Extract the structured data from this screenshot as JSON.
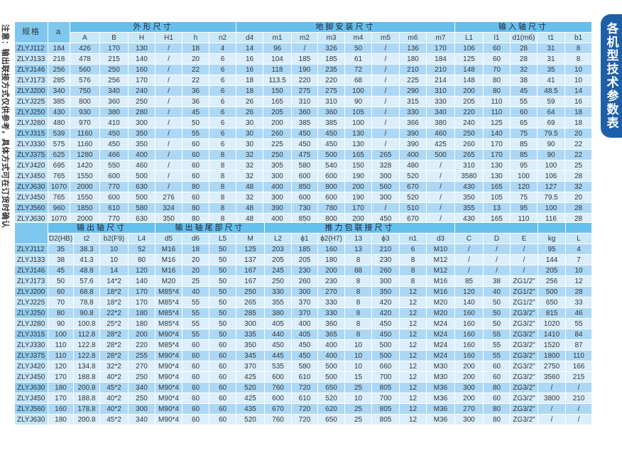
{
  "note": "注意：输出联接方式仅供参考，具体方式可在订货时确认",
  "title_badge": "各机型技术参数表",
  "colors": {
    "group_header": "#66bfec",
    "sub_header": "#c8e7f9",
    "row_dark": "#acd8f5",
    "row_light": "#dbeefb",
    "badge": "#1d5fa9"
  },
  "top_table": {
    "header_groups": [
      {
        "label": "规格",
        "colspan": 1,
        "rowspan": 2
      },
      {
        "label": "a",
        "colspan": 1,
        "rowspan": 2
      },
      {
        "label": "外形尺寸",
        "colspan": 6,
        "rowspan": 1
      },
      {
        "label": "地脚安装尺寸",
        "colspan": 8,
        "rowspan": 1
      },
      {
        "label": "输入轴尺寸",
        "colspan": 5,
        "rowspan": 1
      }
    ],
    "columns": [
      "A",
      "B",
      "H",
      "H1",
      "h",
      "n2",
      "d4",
      "m1",
      "m2",
      "m3",
      "m4",
      "m5",
      "m6",
      "m7",
      "L1",
      "l1",
      "d1(m6)",
      "t1",
      "b1"
    ],
    "rows": [
      [
        "ZLYJ112",
        "184",
        "426",
        "170",
        "130",
        "/",
        "18",
        "4",
        "14",
        "96",
        "/",
        "326",
        "50",
        "/",
        "136",
        "170",
        "106",
        "60",
        "28",
        "31",
        "8"
      ],
      [
        "ZLYJ133",
        "218",
        "478",
        "215",
        "140",
        "/",
        "20",
        "6",
        "16",
        "104",
        "185",
        "185",
        "61",
        "/",
        "180",
        "184",
        "125",
        "60",
        "28",
        "31",
        "8"
      ],
      [
        "ZLYJ146",
        "256",
        "560",
        "250",
        "160",
        "/",
        "22",
        "6",
        "16",
        "118",
        "190",
        "235",
        "72",
        "/",
        "210",
        "210",
        "148",
        "70",
        "32",
        "35",
        "10"
      ],
      [
        "ZLYJ173",
        "285",
        "576",
        "256",
        "170",
        "/",
        "22",
        "6",
        "18",
        "113.5",
        "220",
        "220",
        "68",
        "/",
        "225",
        "214",
        "148",
        "80",
        "38",
        "41",
        "10"
      ],
      [
        "ZLYJ200",
        "340",
        "750",
        "340",
        "240",
        "/",
        "36",
        "6",
        "18",
        "150",
        "275",
        "275",
        "100",
        "/",
        "290",
        "310",
        "200",
        "80",
        "45",
        "48.5",
        "14"
      ],
      [
        "ZLYJ225",
        "385",
        "800",
        "360",
        "250",
        "/",
        "36",
        "6",
        "26",
        "165",
        "310",
        "310",
        "90",
        "/",
        "315",
        "330",
        "205",
        "110",
        "55",
        "59",
        "16"
      ],
      [
        "ZLYJ250",
        "430",
        "930",
        "380",
        "280",
        "/",
        "45",
        "6",
        "26",
        "205",
        "360",
        "360",
        "105",
        "/",
        "330",
        "340",
        "220",
        "110",
        "60",
        "64",
        "18"
      ],
      [
        "ZLYJ280",
        "480",
        "970",
        "410",
        "300",
        "/",
        "50",
        "6",
        "30",
        "200",
        "385",
        "385",
        "100",
        "/",
        "366",
        "380",
        "240",
        "125",
        "65",
        "69",
        "18"
      ],
      [
        "ZLYJ315",
        "539",
        "1160",
        "450",
        "350",
        "/",
        "55",
        "6",
        "30",
        "260",
        "450",
        "450",
        "130",
        "/",
        "390",
        "460",
        "250",
        "140",
        "75",
        "79.5",
        "20"
      ],
      [
        "ZLYJ330",
        "575",
        "1160",
        "450",
        "350",
        "/",
        "60",
        "6",
        "30",
        "225",
        "450",
        "450",
        "130",
        "/",
        "390",
        "425",
        "260",
        "170",
        "85",
        "90",
        "22"
      ],
      [
        "ZLYJ375",
        "625",
        "1280",
        "466",
        "400",
        "/",
        "60",
        "8",
        "32",
        "250",
        "475",
        "500",
        "165",
        "265",
        "400",
        "500",
        "265",
        "170",
        "85",
        "90",
        "22"
      ],
      [
        "ZLYJ420",
        "695",
        "1420",
        "550",
        "460",
        "/",
        "60",
        "8",
        "32",
        "305",
        "580",
        "540",
        "150",
        "328",
        "480",
        "/",
        "310",
        "130",
        "95",
        "100",
        "25"
      ],
      [
        "ZLYJ450",
        "765",
        "1550",
        "600",
        "500",
        "/",
        "60",
        "8",
        "32",
        "300",
        "600",
        "600",
        "190",
        "300",
        "520",
        "/",
        "3580",
        "130",
        "100",
        "106",
        "28"
      ],
      [
        "ZLYJ630",
        "1070",
        "2000",
        "770",
        "630",
        "/",
        "80",
        "8",
        "48",
        "400",
        "850",
        "800",
        "200",
        "560",
        "670",
        "/",
        "430",
        "165",
        "120",
        "127",
        "32"
      ],
      [
        "ZLYJ450",
        "765",
        "1550",
        "600",
        "500",
        "276",
        "60",
        "8",
        "32",
        "300",
        "600",
        "600",
        "190",
        "300",
        "520",
        "/",
        "350",
        "105",
        "75",
        "79.5",
        "20"
      ],
      [
        "ZLYJ560",
        "960",
        "1850",
        "610",
        "580",
        "324",
        "80",
        "8",
        "48",
        "390",
        "730",
        "780",
        "170",
        "/",
        "510",
        "/",
        "355",
        "13",
        "95",
        "100",
        "28"
      ],
      [
        "ZLYJ630",
        "1070",
        "2000",
        "770",
        "630",
        "350",
        "80",
        "8",
        "48",
        "400",
        "850",
        "800",
        "200",
        "450",
        "670",
        "/",
        "430",
        "165",
        "110",
        "116",
        "28"
      ]
    ]
  },
  "bottom_table": {
    "header_groups": [
      {
        "label": "",
        "colspan": 1,
        "rowspan": 2
      },
      {
        "label": "输出轴尺寸",
        "colspan": 4,
        "rowspan": 1
      },
      {
        "label": "输出轴尾部尺寸",
        "colspan": 4,
        "rowspan": 1
      },
      {
        "label": "推力包联接尺寸",
        "colspan": 7,
        "rowspan": 1
      },
      {
        "label": "",
        "colspan": 3,
        "rowspan": 1
      },
      {
        "label": "",
        "colspan": 1,
        "rowspan": 1
      },
      {
        "label": "",
        "colspan": 1,
        "rowspan": 1
      }
    ],
    "columns": [
      "D2(HB)",
      "t2",
      "b2(F9)",
      "L4",
      "d5",
      "d6",
      "L5",
      "M",
      "L2",
      "ϕ1",
      "ϕ2(H7)",
      "13",
      "ϕ3",
      "n1",
      "d3",
      "C",
      "D",
      "E",
      "kg",
      "L"
    ],
    "rows": [
      [
        "ZLYJ112",
        "35",
        "38.3",
        "10",
        "52",
        "M16",
        "18",
        "50",
        "125",
        "203",
        "185",
        "160",
        "13",
        "210",
        "6",
        "M10",
        "/",
        "/",
        "/",
        "95",
        "4"
      ],
      [
        "ZLYJ133",
        "38",
        "41.3",
        "10",
        "80",
        "M16",
        "20",
        "50",
        "137",
        "205",
        "205",
        "180",
        "8",
        "230",
        "8",
        "M12",
        "/",
        "/",
        "/",
        "144",
        "7"
      ],
      [
        "ZLYJ146",
        "45",
        "48.8",
        "14",
        "120",
        "M16",
        "20",
        "50",
        "167",
        "245",
        "230",
        "200",
        "88",
        "260",
        "8",
        "M12",
        "/",
        "/",
        "/",
        "205",
        "10"
      ],
      [
        "ZLYJ173",
        "50",
        "57.6",
        "14*2",
        "140",
        "M20",
        "25",
        "50",
        "167",
        "250",
        "260",
        "230",
        "8",
        "300",
        "8",
        "M16",
        "85",
        "38",
        "ZG1/2\"",
        "256",
        "12"
      ],
      [
        "ZLYJ200",
        "60",
        "68.8",
        "18*2",
        "170",
        "M85*4",
        "40",
        "50",
        "250",
        "330",
        "300",
        "270",
        "8",
        "350",
        "12",
        "M16",
        "120",
        "40",
        "ZG1/2\"",
        "500",
        "28"
      ],
      [
        "ZLYJ225",
        "70",
        "78.8",
        "18*2",
        "170",
        "M85*4",
        "55",
        "50",
        "265",
        "355",
        "370",
        "330",
        "8",
        "420",
        "12",
        "M20",
        "140",
        "50",
        "ZG1/2\"",
        "650",
        "33"
      ],
      [
        "ZLYJ250",
        "80",
        "90.8",
        "22*2",
        "180",
        "M85*4",
        "55",
        "50",
        "285",
        "380",
        "370",
        "330",
        "8",
        "420",
        "12",
        "M20",
        "160",
        "50",
        "ZG3/2\"",
        "815",
        "46"
      ],
      [
        "ZLYJ280",
        "90",
        "100.8",
        "25*2",
        "180",
        "M85*4",
        "55",
        "50",
        "300",
        "405",
        "400",
        "360",
        "8",
        "450",
        "12",
        "M24",
        "160",
        "50",
        "ZG3/2\"",
        "1020",
        "55"
      ],
      [
        "ZLYJ315",
        "100",
        "112.8",
        "28*2",
        "200",
        "M90*4",
        "55",
        "50",
        "335",
        "440",
        "405",
        "365",
        "8",
        "450",
        "12",
        "M24",
        "160",
        "55",
        "ZG3/2\"",
        "1410",
        "84"
      ],
      [
        "ZLYJ330",
        "110",
        "122.8",
        "28*2",
        "220",
        "M85*4",
        "60",
        "60",
        "350",
        "450",
        "450",
        "400",
        "10",
        "500",
        "12",
        "M24",
        "160",
        "55",
        "ZG3/2\"",
        "1520",
        "87"
      ],
      [
        "ZLYJ375",
        "110",
        "122.8",
        "28*2",
        "255",
        "M90*4",
        "60",
        "60",
        "345",
        "445",
        "450",
        "400",
        "10",
        "500",
        "12",
        "M24",
        "160",
        "55",
        "ZG3/2\"",
        "1800",
        "110"
      ],
      [
        "ZLYJ420",
        "120",
        "134.8",
        "32*2",
        "270",
        "M90*4",
        "60",
        "60",
        "370",
        "535",
        "580",
        "500",
        "10",
        "660",
        "12",
        "M30",
        "200",
        "60",
        "ZG3/2\"",
        "2750",
        "166"
      ],
      [
        "ZLYJ450",
        "170",
        "188.8",
        "40*2",
        "250",
        "M90*4",
        "60",
        "60",
        "425",
        "600",
        "610",
        "500",
        "15",
        "700",
        "12",
        "M30",
        "200",
        "60",
        "ZG3/2\"",
        "3560",
        "215"
      ],
      [
        "ZLYJ630",
        "180",
        "200.8",
        "45*2",
        "340",
        "M90*4",
        "60",
        "60",
        "520",
        "760",
        "720",
        "650",
        "25",
        "805",
        "12",
        "M36",
        "300",
        "80",
        "ZG3/2\"",
        "/",
        "/"
      ],
      [
        "ZLYJ450",
        "170",
        "188.8",
        "40*2",
        "250",
        "M90*4",
        "60",
        "60",
        "425",
        "600",
        "610",
        "520",
        "10",
        "700",
        "12",
        "M36",
        "200",
        "60",
        "ZG3/2\"",
        "3800",
        "210"
      ],
      [
        "ZLYJ560",
        "160",
        "178.8",
        "40*2",
        "300",
        "M90*4",
        "60",
        "60",
        "435",
        "670",
        "720",
        "620",
        "25",
        "805",
        "12",
        "M36",
        "270",
        "80",
        "ZG3/2\"",
        "/",
        "/"
      ],
      [
        "ZLYJ630",
        "180",
        "200.8",
        "45*2",
        "340",
        "M90*4",
        "60",
        "60",
        "520",
        "760",
        "720",
        "650",
        "25",
        "805",
        "12",
        "M36",
        "300",
        "80",
        "ZG3/2\"",
        "/",
        "/"
      ]
    ]
  }
}
